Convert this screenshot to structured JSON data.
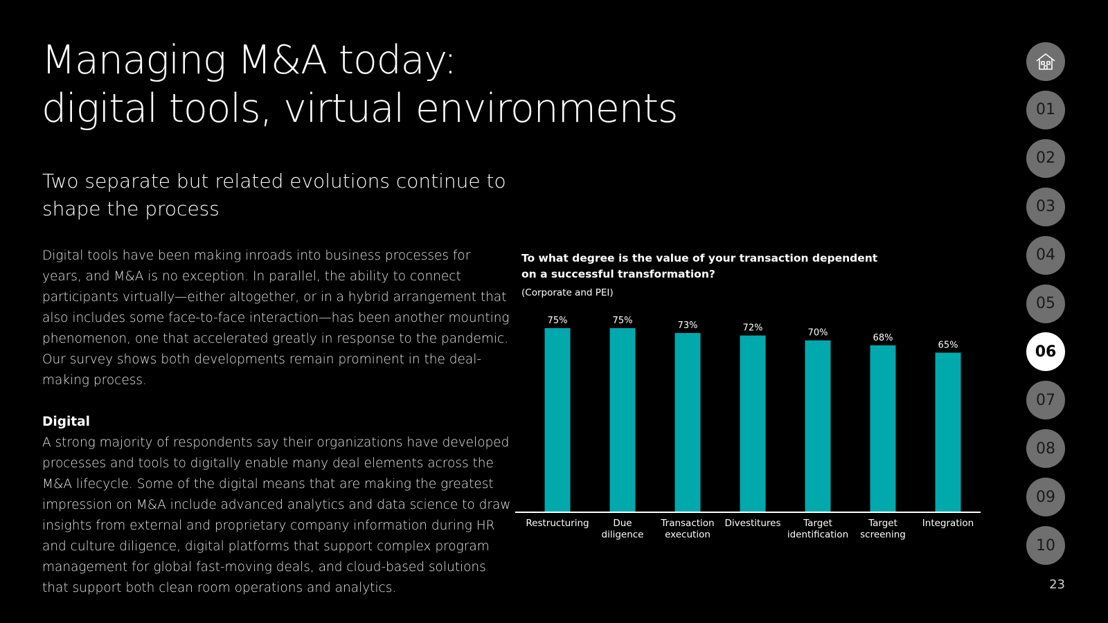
{
  "header": {
    "title_line1": "Managing M&A today:",
    "title_line2": "digital tools, virtual environments"
  },
  "intro": {
    "subtitle": "Two separate but related evolutions continue to shape the process",
    "paragraph1": "Digital tools have been making inroads into business processes for years, and M&A is no exception. In parallel, the ability to connect participants virtually—either altogether, or in a hybrid arrangement that also includes some face-to-face interaction—has been another mounting phenomenon, one that accelerated greatly in response to the pandemic. Our survey shows both developments remain prominent in the deal-making process.",
    "section_heading": "Digital",
    "paragraph2": "A strong majority of respondents say their organizations have developed processes and tools to digitally enable many deal elements across the M&A lifecycle. Some of the digital means that are making the greatest impression on M&A include advanced analytics and data science to draw insights from external and proprietary company information during HR and culture diligence, digital platforms that support complex program management for global fast-moving deals, and cloud-based solutions that support both clean room operations and analytics."
  },
  "chart_data": {
    "type": "bar",
    "title": "To what degree is the value of your transaction dependent on a successful transformation?",
    "subtitle": "(Corporate and PEI)",
    "categories": [
      [
        "Restructuring"
      ],
      [
        "Due",
        "diligence"
      ],
      [
        "Transaction",
        "execution"
      ],
      [
        "Divestitures"
      ],
      [
        "Target",
        "identification"
      ],
      [
        "Target",
        "screening"
      ],
      [
        "Integration"
      ]
    ],
    "values": [
      75,
      75,
      73,
      72,
      70,
      68,
      65
    ],
    "value_suffix": "%",
    "ylim": [
      0,
      75
    ],
    "xlabel": "",
    "ylabel": "",
    "bar_color": "#00a9ac"
  },
  "navigation": {
    "home_icon": "house-icon",
    "items": [
      "01",
      "02",
      "03",
      "04",
      "05",
      "06",
      "07",
      "08",
      "09",
      "10"
    ],
    "active": "06"
  },
  "footer": {
    "page_number": "23"
  }
}
